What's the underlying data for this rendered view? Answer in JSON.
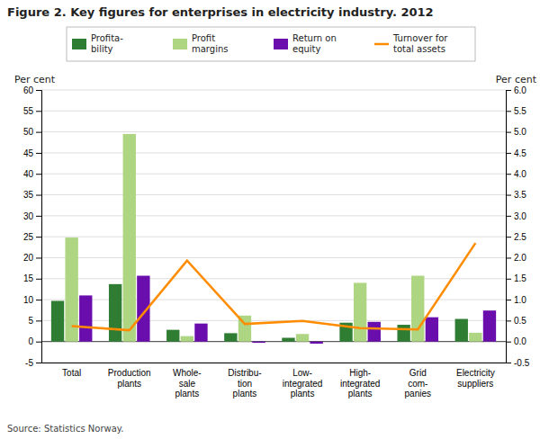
{
  "chart_data": {
    "type": "bar",
    "title": "Figure 2. Key figures for enterprises in electricity industry. 2012",
    "ylabel": "Per cent",
    "y2label": "Per cent",
    "annotations": [
      "Source: Statistics Norway."
    ],
    "categories": [
      "Total",
      "Production\nplants",
      "Whole-\nsale\nplants",
      "Distribu-\ntion\nplants",
      "Low-\nintegrated\nplants",
      "High-\nintegrated\nplants",
      "Grid\ncom-\npanies",
      "Electricity\nsuppliers"
    ],
    "series": [
      {
        "name": "Profita-\nbility",
        "type": "bar",
        "color": "#2e7d32",
        "values": [
          9.7,
          13.7,
          2.8,
          2.0,
          0.9,
          4.5,
          4.0,
          5.4
        ]
      },
      {
        "name": "Profit\nmargins",
        "type": "bar",
        "color": "#aed581",
        "values": [
          24.8,
          49.5,
          1.3,
          6.2,
          1.8,
          14.0,
          15.7,
          2.1
        ]
      },
      {
        "name": "Return on\nequity",
        "type": "bar",
        "color": "#6a0dad",
        "values": [
          11.0,
          15.7,
          4.3,
          -0.3,
          -0.5,
          4.7,
          5.8,
          7.4
        ]
      },
      {
        "name": "Turnover for\ntotal assets",
        "type": "line",
        "axis": "y2",
        "color": "#ff8c00",
        "values": [
          0.37,
          0.27,
          1.93,
          0.42,
          0.49,
          0.32,
          0.29,
          2.35
        ]
      }
    ],
    "ylim": [
      -5,
      60
    ],
    "yticks": [
      -5,
      0,
      5,
      10,
      15,
      20,
      25,
      30,
      35,
      40,
      45,
      50,
      55,
      60
    ],
    "y2lim": [
      -0.5,
      6.0
    ],
    "y2ticks": [
      -0.5,
      {
        "value": 0.0,
        "label": "0.0"
      },
      0.5,
      {
        "value": 1.0,
        "label": "1.0"
      },
      1.5,
      {
        "value": 2.0,
        "label": "2.0"
      },
      2.5,
      {
        "value": 3.0,
        "label": "3.0"
      },
      3.5,
      {
        "value": 4.0,
        "label": "4.0"
      },
      4.5,
      {
        "value": 5.0,
        "label": "5.0"
      },
      5.5,
      {
        "value": 6.0,
        "label": "6.0"
      }
    ],
    "grid": true,
    "legend": "top"
  }
}
